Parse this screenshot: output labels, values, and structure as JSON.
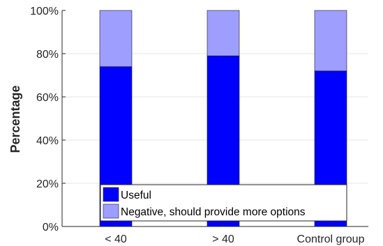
{
  "chart_data": {
    "type": "bar",
    "stacked": true,
    "categories": [
      "< 40",
      "> 40",
      "Control group"
    ],
    "series": [
      {
        "name": "Useful",
        "values": [
          74,
          79,
          72
        ],
        "color": "#0000ff"
      },
      {
        "name": "Negative, should provide more options",
        "values": [
          26,
          21,
          28
        ],
        "color": "#9e9eff"
      }
    ],
    "ylabel": "Percentage",
    "xlabel": "",
    "ylim": [
      0,
      100
    ],
    "yticks": [
      0,
      20,
      40,
      60,
      80,
      100
    ],
    "ytick_labels": [
      "0%",
      "20%",
      "40%",
      "60%",
      "80%",
      "100%"
    ],
    "grid": true,
    "legend_position": "bottom-center",
    "axis_color": "#262626",
    "grid_color": "#e6e6e6"
  }
}
